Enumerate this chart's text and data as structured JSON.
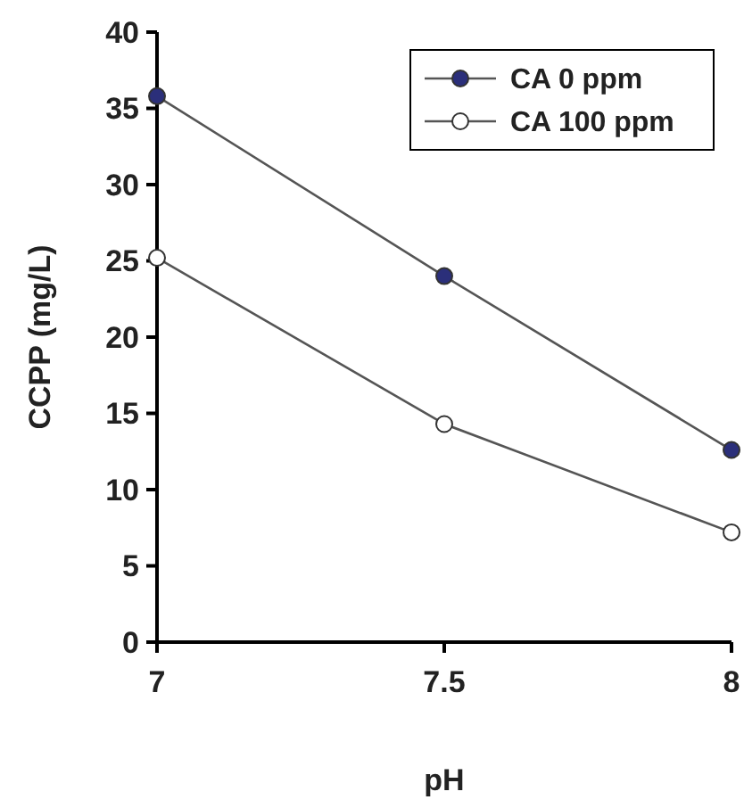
{
  "chart_data": {
    "type": "line",
    "xlabel": "pH",
    "ylabel": "CCPP (mg/L)",
    "x": [
      7,
      7.5,
      8
    ],
    "xlim": [
      7,
      8
    ],
    "xticks": [
      7,
      7.5,
      8
    ],
    "ylim": [
      0,
      40
    ],
    "yticks": [
      0,
      5,
      10,
      15,
      20,
      25,
      30,
      35,
      40
    ],
    "marker": "circle",
    "legend": "top right",
    "grid": false,
    "series": [
      {
        "name": "CA 0 ppm",
        "color": "#2b2f7a",
        "values": [
          35.8,
          24,
          12.6
        ]
      },
      {
        "name": "CA 100 ppm",
        "color": "#ffffff",
        "values": [
          25.2,
          14.3,
          7.2
        ]
      }
    ]
  }
}
